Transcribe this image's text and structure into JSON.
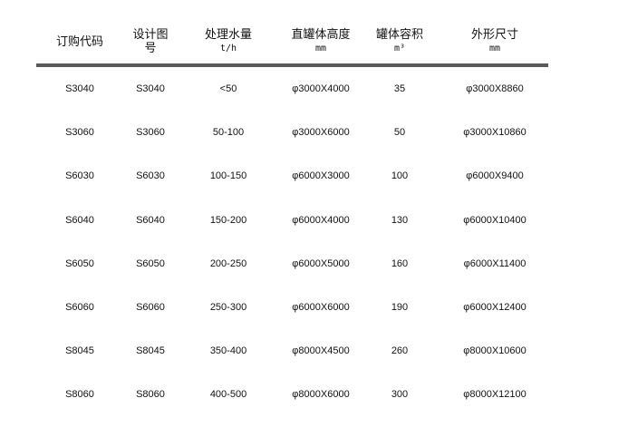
{
  "headers": [
    {
      "title": "订购代码",
      "unit": ""
    },
    {
      "title": "设计图",
      "unit": "号"
    },
    {
      "title": "处理水量",
      "unit": "t/h"
    },
    {
      "title": "直罐体高度",
      "unit": "mm"
    },
    {
      "title": "罐体容积",
      "unit": "m³"
    },
    {
      "title": "外形尺寸",
      "unit": "mm"
    }
  ],
  "rows": [
    [
      "S3040",
      "S3040",
      "<50",
      "φ3000X4000",
      "35",
      "φ3000X8860"
    ],
    [
      "S3060",
      "S3060",
      "50-100",
      "φ3000X6000",
      "50",
      "φ3000X10860"
    ],
    [
      "S6030",
      "S6030",
      "100-150",
      "φ6000X3000",
      "100",
      "φ6000X9400"
    ],
    [
      "S6040",
      "S6040",
      "150-200",
      "φ6000X4000",
      "130",
      "φ6000X10400"
    ],
    [
      "S6050",
      "S6050",
      "200-250",
      "φ6000X5000",
      "160",
      "φ6000X11400"
    ],
    [
      "S6060",
      "S6060",
      "250-300",
      "φ6000X6000",
      "190",
      "φ6000X12400"
    ],
    [
      "S8045",
      "S8045",
      "350-400",
      "φ8000X4500",
      "260",
      "φ8000X10600"
    ],
    [
      "S8060",
      "S8060",
      "400-500",
      "φ8000X6000",
      "300",
      "φ8000X12100"
    ]
  ],
  "colors": {
    "rule": "#5a5a5a",
    "text": "#111111"
  }
}
